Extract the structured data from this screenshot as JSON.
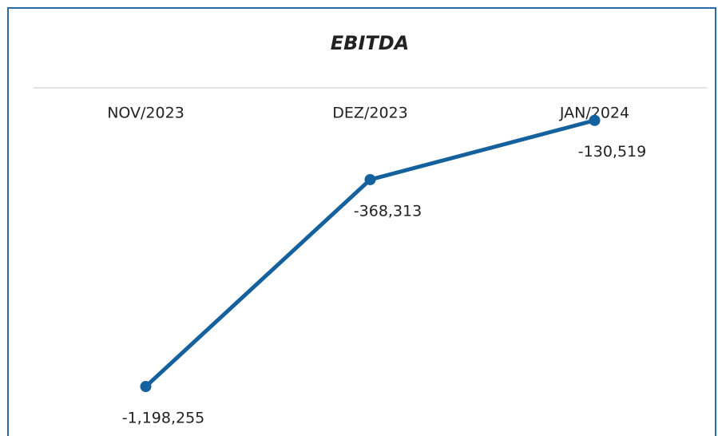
{
  "chart_data": {
    "type": "line",
    "title": "EBITDA",
    "categories": [
      "NOV/2023",
      "DEZ/2023",
      "JAN/2024"
    ],
    "series": [
      {
        "name": "EBITDA",
        "color": "#15619d",
        "values": [
          -1198255,
          -368313,
          -130519
        ],
        "value_labels": [
          "-1,198,255",
          "-368,313",
          "-130,519"
        ]
      }
    ],
    "ylim": [
      -1400000,
      0
    ]
  }
}
